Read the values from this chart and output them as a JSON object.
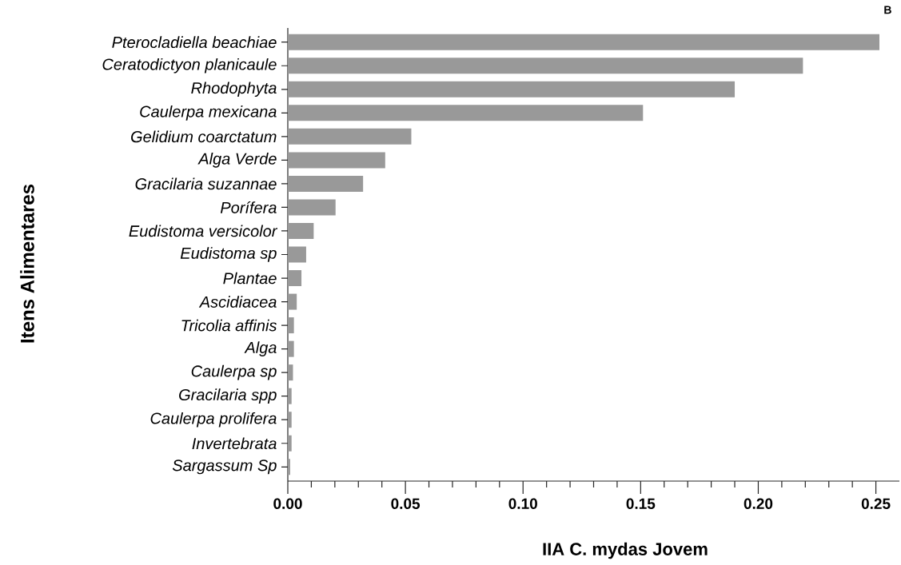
{
  "chart_data": {
    "type": "bar",
    "orientation": "horizontal",
    "xlabel": "IIA C. mydas Jovem",
    "ylabel": "Itens Alimentares",
    "annotations": [
      "B"
    ],
    "categories": [
      "Pterocladiella beachiae",
      "Ceratodictyon planicaule",
      "Rhodophyta",
      "Caulerpa mexicana",
      "Gelidium coarctatum",
      "Alga Verde",
      "Gracilaria suzannae",
      "Porífera",
      "Eudistoma versicolor",
      "Eudistoma sp",
      "Plantae",
      "Ascidiacea",
      "Tricolia affinis",
      "Alga",
      "Caulerpa sp",
      "Gracilaria spp",
      "Caulerpa prolifera",
      "Invertebrata",
      "Sargassum Sp"
    ],
    "values": [
      0.2515,
      0.219,
      0.19,
      0.151,
      0.0525,
      0.0414,
      0.032,
      0.0203,
      0.011,
      0.0078,
      0.0058,
      0.0038,
      0.0026,
      0.0026,
      0.0022,
      0.0016,
      0.0016,
      0.0016,
      0.001
    ],
    "color": "#999999",
    "xlim": [
      0,
      0.26
    ],
    "xticks": [
      {
        "value": 0,
        "label": "0.00"
      },
      {
        "value": 0.01,
        "label": null
      },
      {
        "value": 0.02,
        "label": null
      },
      {
        "value": 0.03,
        "label": null
      },
      {
        "value": 0.04,
        "label": null
      },
      {
        "value": 0.05,
        "label": "0.05"
      },
      {
        "value": 0.06,
        "label": null
      },
      {
        "value": 0.07,
        "label": null
      },
      {
        "value": 0.08,
        "label": null
      },
      {
        "value": 0.09,
        "label": null
      },
      {
        "value": 0.1,
        "label": "0.10"
      },
      {
        "value": 0.11,
        "label": null
      },
      {
        "value": 0.12,
        "label": null
      },
      {
        "value": 0.13,
        "label": null
      },
      {
        "value": 0.14,
        "label": null
      },
      {
        "value": 0.15,
        "label": "0.15"
      },
      {
        "value": 0.16,
        "label": null
      },
      {
        "value": 0.17,
        "label": null
      },
      {
        "value": 0.18,
        "label": null
      },
      {
        "value": 0.19,
        "label": null
      },
      {
        "value": 0.2,
        "label": "0.20"
      },
      {
        "value": 0.21,
        "label": null
      },
      {
        "value": 0.22,
        "label": null
      },
      {
        "value": 0.23,
        "label": null
      },
      {
        "value": 0.24,
        "label": null
      },
      {
        "value": 0.25,
        "label": "0.25"
      }
    ]
  }
}
